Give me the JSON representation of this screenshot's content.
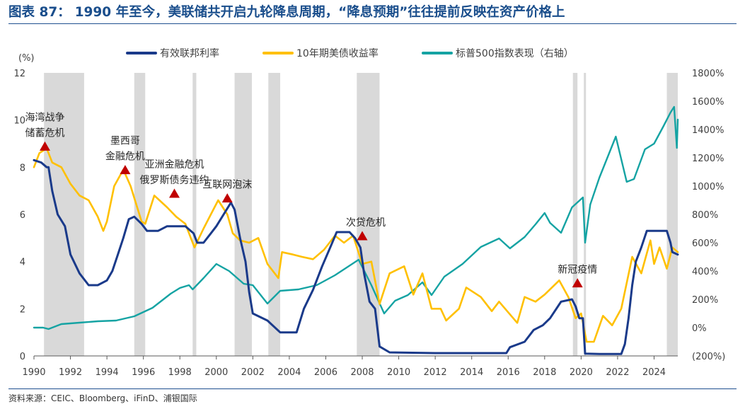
{
  "header": {
    "tag": "图表 87：",
    "title": "1990 年至今，美联储共开启九轮降息周期，“降息预期”往往提前反映在资产价格上"
  },
  "footer": {
    "source": "资料来源：CEIC、Bloomberg、iFinD、浦银国际"
  },
  "chart_data": {
    "type": "line",
    "y_unit_left": "(%)",
    "ylim_left": [
      0,
      12
    ],
    "yticks_left": [
      0,
      2,
      4,
      6,
      8,
      10,
      12
    ],
    "ylim_right": [
      -200,
      1800
    ],
    "yticks_right": [
      "(200%)",
      "0%",
      "200%",
      "400%",
      "600%",
      "800%",
      "1000%",
      "1200%",
      "1400%",
      "1600%",
      "1800%"
    ],
    "xlim": [
      1990,
      2025.3
    ],
    "xticks": [
      "1990",
      "1992",
      "1994",
      "1996",
      "1998",
      "2000",
      "2002",
      "2004",
      "2006",
      "2008",
      "2010",
      "2012",
      "2014",
      "2016",
      "2018",
      "2020",
      "2022",
      "2024"
    ],
    "legend_position": "top-center",
    "grid": false,
    "colors": {
      "fed": "#1a3a8a",
      "ust10y": "#ffc000",
      "spx": "#15a3a3",
      "shade": "#d9d9d9",
      "marker": "#c00000"
    },
    "rate_cut_periods": [
      [
        1990.55,
        1992.75
      ],
      [
        1995.5,
        1996.1
      ],
      [
        1998.7,
        1998.9
      ],
      [
        2001.0,
        2001.95
      ],
      [
        2002.85,
        2003.5
      ],
      [
        2007.7,
        2008.95
      ],
      [
        2019.55,
        2019.8
      ],
      [
        2020.15,
        2020.25
      ],
      [
        2024.7,
        2025.3
      ]
    ],
    "series": [
      {
        "name": "有效联邦利率",
        "axis": "left",
        "color_key": "fed",
        "x": [
          1990.0,
          1990.4,
          1990.7,
          1990.8,
          1991.0,
          1991.3,
          1991.7,
          1992.0,
          1992.5,
          1993.0,
          1993.5,
          1994.0,
          1994.3,
          1994.6,
          1994.9,
          1995.2,
          1995.5,
          1995.9,
          1996.2,
          1996.8,
          1997.3,
          1997.8,
          1998.3,
          1998.75,
          1998.95,
          1999.3,
          1999.7,
          2000.0,
          2000.4,
          2000.8,
          2001.0,
          2001.3,
          2001.6,
          2001.8,
          2002.0,
          2002.8,
          2003.5,
          2004.4,
          2004.8,
          2005.3,
          2005.8,
          2006.3,
          2006.6,
          2007.3,
          2007.6,
          2007.9,
          2008.1,
          2008.4,
          2008.7,
          2008.95,
          2009.5,
          2012.0,
          2015.9,
          2016.1,
          2016.9,
          2017.4,
          2017.9,
          2018.3,
          2018.9,
          2019.5,
          2019.7,
          2019.9,
          2020.1,
          2020.22,
          2021.0,
          2022.2,
          2022.4,
          2022.6,
          2022.8,
          2023.0,
          2023.3,
          2023.6,
          2024.7,
          2024.9,
          2025.0,
          2025.3
        ],
        "y": [
          8.3,
          8.2,
          8.0,
          8.0,
          7.0,
          6.0,
          5.5,
          4.3,
          3.5,
          3.0,
          3.0,
          3.2,
          3.6,
          4.3,
          5.0,
          5.8,
          5.9,
          5.6,
          5.3,
          5.3,
          5.5,
          5.5,
          5.5,
          5.2,
          4.8,
          4.8,
          5.2,
          5.5,
          6.0,
          6.5,
          6.2,
          5.0,
          4.0,
          2.7,
          1.8,
          1.5,
          1.0,
          1.0,
          2.0,
          2.8,
          3.8,
          4.7,
          5.25,
          5.25,
          5.0,
          4.6,
          3.5,
          2.3,
          2.0,
          0.4,
          0.15,
          0.12,
          0.12,
          0.37,
          0.6,
          1.1,
          1.3,
          1.6,
          2.3,
          2.4,
          2.1,
          1.6,
          1.6,
          0.1,
          0.08,
          0.08,
          0.5,
          1.6,
          3.0,
          4.0,
          4.6,
          5.3,
          5.3,
          4.8,
          4.4,
          4.3
        ]
      },
      {
        "name": "10年期美债收益率",
        "axis": "left",
        "color_key": "ust10y",
        "x": [
          1990.0,
          1990.3,
          1990.7,
          1991.0,
          1991.5,
          1992.0,
          1992.5,
          1993.0,
          1993.5,
          1993.8,
          1994.0,
          1994.4,
          1994.9,
          1995.3,
          1995.9,
          1996.1,
          1996.6,
          1997.3,
          1997.8,
          1998.3,
          1998.8,
          1999.3,
          1999.9,
          2000.1,
          2000.6,
          2000.9,
          2001.3,
          2001.8,
          2002.3,
          2002.8,
          2003.4,
          2003.6,
          2004.2,
          2004.7,
          2005.3,
          2005.9,
          2006.5,
          2007.0,
          2007.5,
          2008.0,
          2008.5,
          2008.95,
          2009.5,
          2010.3,
          2010.8,
          2011.3,
          2011.8,
          2012.3,
          2012.6,
          2013.3,
          2013.7,
          2014.5,
          2015.1,
          2015.5,
          2016.5,
          2016.9,
          2017.5,
          2018.0,
          2018.8,
          2019.3,
          2019.7,
          2020.0,
          2020.3,
          2020.7,
          2021.2,
          2021.7,
          2022.2,
          2022.8,
          2023.3,
          2023.8,
          2024.0,
          2024.3,
          2024.7,
          2025.0,
          2025.3
        ],
        "y": [
          8.0,
          8.6,
          8.8,
          8.2,
          8.0,
          7.3,
          6.8,
          6.6,
          5.9,
          5.3,
          5.7,
          7.2,
          7.9,
          7.2,
          5.7,
          5.6,
          6.8,
          6.3,
          5.9,
          5.6,
          4.6,
          5.4,
          6.3,
          6.6,
          6.0,
          5.2,
          4.9,
          4.8,
          5.0,
          3.9,
          3.3,
          4.4,
          4.3,
          4.2,
          4.1,
          4.5,
          5.1,
          4.8,
          5.1,
          3.9,
          4.0,
          2.2,
          3.5,
          3.8,
          2.6,
          3.5,
          2.0,
          2.0,
          1.5,
          2.0,
          2.9,
          2.5,
          1.9,
          2.3,
          1.4,
          2.5,
          2.3,
          2.6,
          3.2,
          2.5,
          1.6,
          1.8,
          0.6,
          0.6,
          1.7,
          1.3,
          2.0,
          4.2,
          3.5,
          4.9,
          3.9,
          4.6,
          3.7,
          4.6,
          4.4
        ]
      },
      {
        "name": "标普500指数表现（右轴）",
        "axis": "right",
        "color_key": "spx",
        "x": [
          1990.0,
          1990.5,
          1990.8,
          1991.5,
          1992.5,
          1993.5,
          1994.5,
          1995.5,
          1996.5,
          1997.5,
          1998.0,
          1998.5,
          1998.7,
          1999.3,
          2000.0,
          2000.7,
          2001.5,
          2002.0,
          2002.8,
          2003.5,
          2004.5,
          2005.5,
          2006.5,
          2007.8,
          2008.5,
          2009.2,
          2009.8,
          2010.5,
          2011.3,
          2011.8,
          2012.5,
          2013.5,
          2014.5,
          2015.5,
          2016.1,
          2016.9,
          2017.5,
          2018.0,
          2018.3,
          2018.9,
          2019.5,
          2020.1,
          2020.22,
          2020.5,
          2021.0,
          2021.9,
          2022.5,
          2022.9,
          2023.5,
          2024.0,
          2024.5,
          2024.9,
          2025.1,
          2025.25,
          2025.3
        ],
        "y": [
          0,
          0,
          -10,
          25,
          35,
          45,
          50,
          80,
          140,
          240,
          280,
          300,
          270,
          350,
          450,
          400,
          310,
          300,
          170,
          260,
          270,
          300,
          370,
          480,
          300,
          100,
          190,
          230,
          320,
          230,
          360,
          450,
          570,
          630,
          560,
          640,
          730,
          810,
          740,
          670,
          850,
          920,
          600,
          870,
          1060,
          1350,
          1030,
          1050,
          1260,
          1300,
          1420,
          1520,
          1560,
          1270,
          1470
        ]
      }
    ],
    "markers": [
      {
        "x": 1990.6,
        "y": 8.9,
        "label": "海湾战争\n储蓄危机"
      },
      {
        "x": 1995.0,
        "y": 7.9,
        "label": "墨西哥\n金融危机"
      },
      {
        "x": 1997.7,
        "y": 6.9,
        "label": "亚洲金融危机\n俄罗斯债务违约"
      },
      {
        "x": 2000.6,
        "y": 6.7,
        "label": "互联网泡沫"
      },
      {
        "x": 2008.0,
        "y": 5.1,
        "label": "次贷危机"
      },
      {
        "x": 2019.8,
        "y": 3.1,
        "label": "新冠疫情"
      }
    ]
  }
}
